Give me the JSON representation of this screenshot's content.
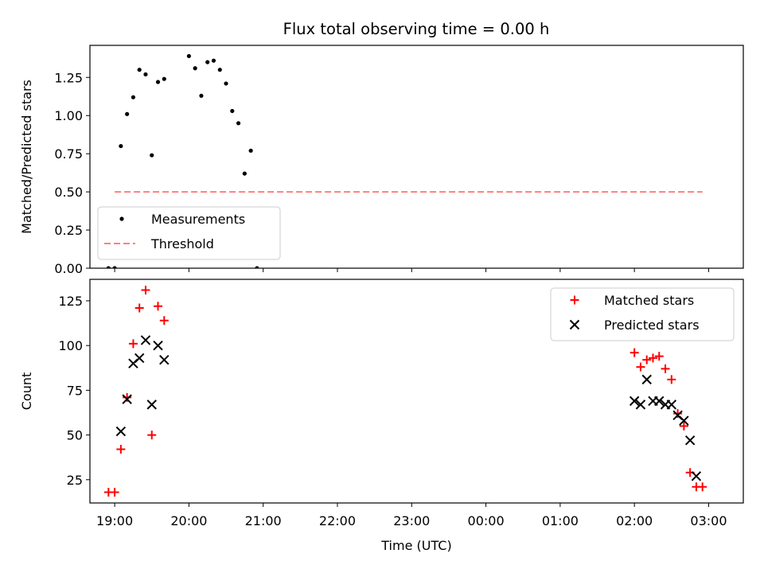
{
  "title": "Flux total observing time = 0.00 h",
  "colors": {
    "measurements": "#000000",
    "threshold": "#ff7f7f",
    "matched": "#ff0000",
    "predicted": "#000000"
  },
  "chart_data": [
    {
      "type": "scatter",
      "panel": "top",
      "title": "Flux total observing time = 0.00 h",
      "ylabel": "Matched/Predicted stars",
      "xlabel": "",
      "xlim": [
        "18:40",
        "03:28"
      ],
      "ylim": [
        0,
        1.46
      ],
      "ytick_labels": [
        "0.00",
        "0.25",
        "0.50",
        "0.75",
        "1.00",
        "1.25"
      ],
      "legend_position": "lower-left",
      "series": [
        {
          "name": "Measurements",
          "kind": "points",
          "x": [
            "18:55",
            "19:00",
            "19:05",
            "19:10",
            "19:15",
            "19:20",
            "19:25",
            "19:30",
            "19:35",
            "19:40",
            "20:00",
            "20:05",
            "20:10",
            "20:15",
            "20:20",
            "20:25",
            "20:30",
            "20:35",
            "20:40",
            "20:45",
            "20:50",
            "20:55"
          ],
          "y": [
            0.0,
            0.0,
            0.8,
            1.01,
            1.12,
            1.3,
            1.27,
            0.74,
            1.22,
            1.24,
            1.39,
            1.31,
            1.13,
            1.35,
            1.36,
            1.3,
            1.21,
            1.03,
            0.95,
            0.62,
            0.77,
            0.0
          ]
        },
        {
          "name": "Threshold",
          "kind": "dashed-line",
          "x": [
            "19:00",
            "02:55"
          ],
          "y": [
            0.5,
            0.5
          ]
        }
      ]
    },
    {
      "type": "scatter",
      "panel": "bottom",
      "xlabel": "Time (UTC)",
      "ylabel": "Count",
      "xlim": [
        "18:40",
        "03:28"
      ],
      "ylim": [
        12,
        137
      ],
      "ytick_labels": [
        "25",
        "50",
        "75",
        "100",
        "125"
      ],
      "xtick_labels": [
        "19:00",
        "20:00",
        "21:00",
        "22:00",
        "23:00",
        "00:00",
        "01:00",
        "02:00",
        "03:00"
      ],
      "legend_position": "upper-right",
      "series": [
        {
          "name": "Matched stars",
          "marker": "plus",
          "x": [
            "18:55",
            "19:00",
            "19:05",
            "19:10",
            "19:15",
            "19:20",
            "19:25",
            "19:30",
            "19:35",
            "19:40",
            "02:00",
            "02:05",
            "02:10",
            "02:15",
            "02:20",
            "02:25",
            "02:30",
            "02:35",
            "02:40",
            "02:45",
            "02:50",
            "02:55"
          ],
          "y": [
            18,
            18,
            42,
            71,
            101,
            121,
            131,
            50,
            122,
            114,
            96,
            88,
            92,
            93,
            94,
            87,
            81,
            62,
            55,
            29,
            21,
            21
          ]
        },
        {
          "name": "Predicted stars",
          "marker": "x",
          "x": [
            "19:05",
            "19:10",
            "19:15",
            "19:20",
            "19:25",
            "19:30",
            "19:35",
            "19:40",
            "02:00",
            "02:05",
            "02:10",
            "02:15",
            "02:20",
            "02:25",
            "02:30",
            "02:35",
            "02:40",
            "02:45",
            "02:50"
          ],
          "y": [
            52,
            70,
            90,
            93,
            103,
            67,
            100,
            92,
            69,
            67,
            81,
            69,
            69,
            67,
            67,
            61,
            58,
            47,
            27
          ]
        }
      ]
    }
  ]
}
